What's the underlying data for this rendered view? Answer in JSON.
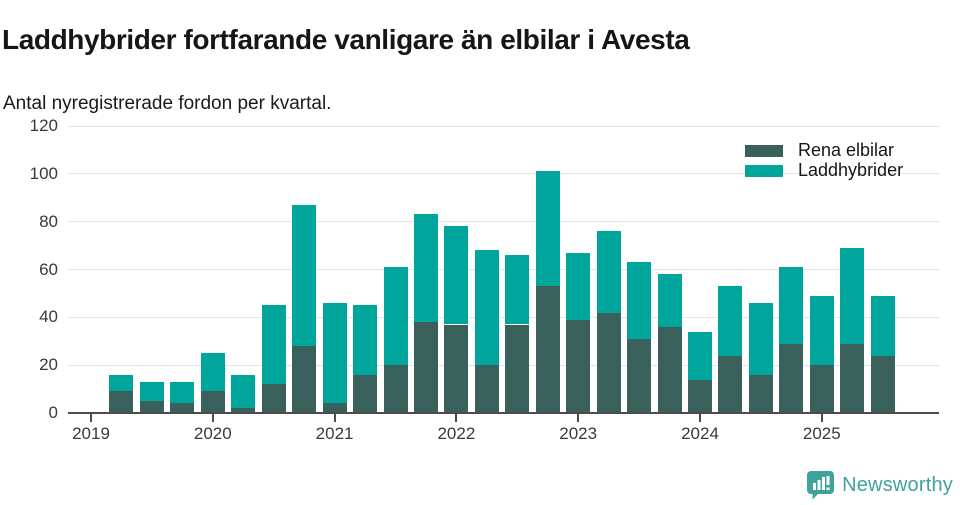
{
  "header": {
    "title": "Laddhybrider fortfarande vanligare än elbilar i Avesta",
    "subtitle": "Antal nyregistrerade fordon per kvartal."
  },
  "legend": [
    {
      "label": "Rena elbilar",
      "color": "#3a605b"
    },
    {
      "label": "Laddhybrider",
      "color": "#00a69c"
    }
  ],
  "footer": {
    "brand": "Newsworthy",
    "brand_color": "#3fa39c"
  },
  "colors": {
    "elbilar": "#3a605b",
    "laddhybrider": "#00a69c",
    "grid": "#e4e4e4",
    "axis": "#4c4c4c",
    "tick_text": "#3a3a3a",
    "text": "#161616",
    "background": "#ffffff"
  },
  "chart_data": {
    "type": "bar",
    "stacked": true,
    "title": "Laddhybrider fortfarande vanligare än elbilar i Avesta",
    "subtitle": "Antal nyregistrerade fordon per kvartal.",
    "ylabel": "",
    "xlabel": "",
    "ylim": [
      0,
      120
    ],
    "y_ticks": [
      0,
      20,
      40,
      60,
      80,
      100,
      120
    ],
    "grid": "horizontal",
    "legend_position": "top-right",
    "x_tick_years": [
      "2019",
      "2020",
      "2021",
      "2022",
      "2023",
      "2024",
      "2025"
    ],
    "categories": [
      "2019 Q1",
      "2019 Q2",
      "2019 Q3",
      "2019 Q4",
      "2020 Q1",
      "2020 Q2",
      "2020 Q3",
      "2020 Q4",
      "2021 Q1",
      "2021 Q2",
      "2021 Q3",
      "2021 Q4",
      "2022 Q1",
      "2022 Q2",
      "2022 Q3",
      "2022 Q4",
      "2023 Q1",
      "2023 Q2",
      "2023 Q3",
      "2023 Q4",
      "2024 Q1",
      "2024 Q2",
      "2024 Q3",
      "2024 Q4",
      "2025 Q1",
      "2025 Q2",
      "2025 Q3"
    ],
    "series": [
      {
        "name": "Rena elbilar",
        "color": "#3a605b",
        "values": [
          0,
          9,
          5,
          4,
          9,
          2,
          12,
          28,
          4,
          16,
          20,
          38,
          37,
          20,
          37,
          53,
          39,
          42,
          31,
          36,
          14,
          24,
          16,
          29,
          20,
          29,
          24
        ]
      },
      {
        "name": "Laddhybrider",
        "color": "#00a69c",
        "values": [
          0,
          7,
          8,
          9,
          16,
          14,
          33,
          59,
          42,
          29,
          41,
          45,
          41,
          48,
          29,
          48,
          28,
          34,
          32,
          22,
          20,
          29,
          30,
          32,
          29,
          40,
          25
        ]
      }
    ],
    "totals": [
      0,
      16,
      13,
      13,
      25,
      16,
      45,
      87,
      46,
      45,
      61,
      83,
      78,
      68,
      66,
      101,
      67,
      76,
      63,
      58,
      34,
      53,
      46,
      61,
      49,
      69,
      49
    ]
  }
}
